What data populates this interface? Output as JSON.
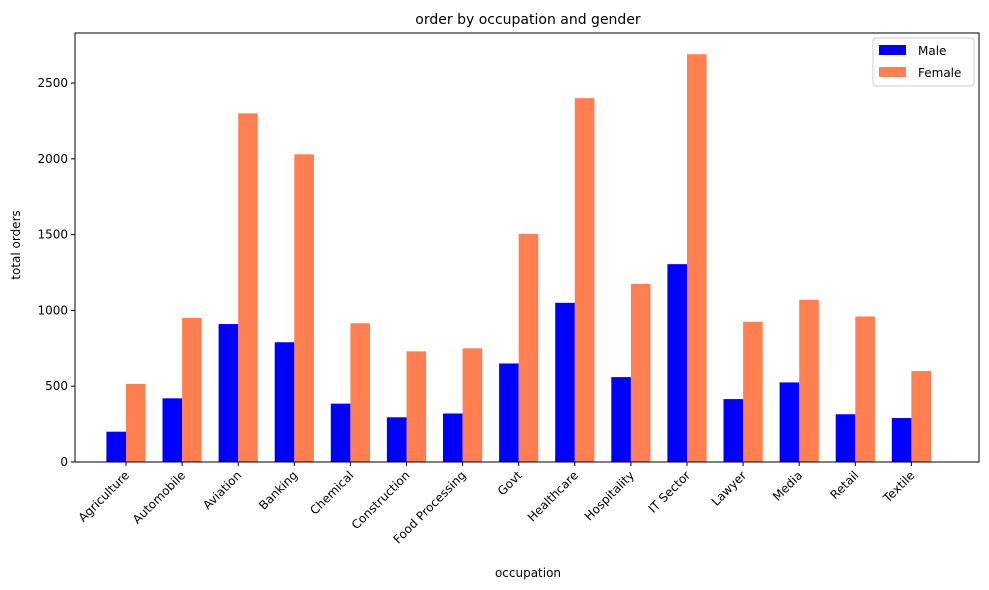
{
  "chart_data": {
    "type": "bar",
    "title": "order by occupation and gender",
    "xlabel": "occupation",
    "ylabel": "total orders",
    "ylim": [
      0,
      2830
    ],
    "yticks": [
      0,
      500,
      1000,
      1500,
      2000,
      2500
    ],
    "legend_position": "top-right",
    "grid": false,
    "categories": [
      "Agriculture",
      "Automobile",
      "Aviation",
      "Banking",
      "Chemical",
      "Construction",
      "Food Processing",
      "Govt",
      "Healthcare",
      "Hospitality",
      "IT Sector",
      "Lawyer",
      "Media",
      "Retail",
      "Textile"
    ],
    "series": [
      {
        "name": "Male",
        "color": "#0000ff",
        "values": [
          200,
          420,
          910,
          790,
          385,
          295,
          320,
          650,
          1050,
          560,
          1305,
          415,
          525,
          315,
          290
        ]
      },
      {
        "name": "Female",
        "color": "#ff7f50",
        "values": [
          515,
          950,
          2300,
          2030,
          915,
          730,
          750,
          1505,
          2400,
          1175,
          2690,
          925,
          1070,
          960,
          600
        ]
      }
    ]
  }
}
